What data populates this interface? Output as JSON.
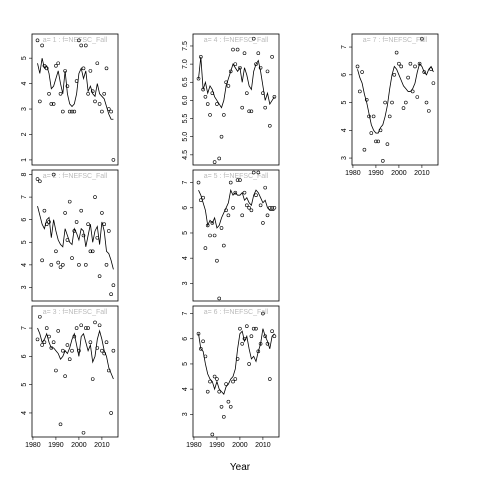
{
  "xlabel": "Year",
  "chart_data": [
    {
      "type": "scatter-line",
      "title": "a= 1 :  f=NEFSC_Fall",
      "color": "#000000",
      "x": [
        1982,
        1983,
        1984,
        1985,
        1986,
        1987,
        1988,
        1989,
        1990,
        1991,
        1992,
        1993,
        1994,
        1995,
        1996,
        1997,
        1998,
        1999,
        2000,
        2001,
        2002,
        2003,
        2004,
        2005,
        2006,
        2007,
        2008,
        2009,
        2010,
        2011,
        2012,
        2013,
        2014,
        2015
      ],
      "points": [
        5.7,
        3.3,
        5.5,
        4.7,
        4.6,
        3.6,
        3.2,
        3.2,
        4.7,
        4.8,
        3.6,
        2.9,
        4.5,
        3.9,
        2.9,
        2.9,
        2.9,
        4.1,
        5.7,
        5.5,
        4.6,
        5.5,
        3.6,
        4.5,
        3.7,
        3.3,
        4.8,
        3.2,
        2.9,
        3.6,
        4.6,
        3.0,
        2.9,
        1.0
      ],
      "fit": [
        4.8,
        4.4,
        5.0,
        4.6,
        4.7,
        4.4,
        3.8,
        3.9,
        4.2,
        4.5,
        4.0,
        3.6,
        4.5,
        3.6,
        3.2,
        3.1,
        3.2,
        3.6,
        4.4,
        4.6,
        4.2,
        4.5,
        3.7,
        3.9,
        3.6,
        3.5,
        4.0,
        3.6,
        3.5,
        3.4,
        3.1,
        2.8,
        2.6,
        2.6
      ],
      "xlim": [
        1979.6,
        2017
      ],
      "ylim": [
        0.8,
        5.95
      ],
      "yticks": [
        1,
        2,
        3,
        4,
        5
      ]
    },
    {
      "type": "scatter-line",
      "title": "a= 2 :  f=NEFSC_Fall",
      "color": "#000000",
      "x": [
        1982,
        1983,
        1984,
        1985,
        1986,
        1987,
        1988,
        1989,
        1990,
        1991,
        1992,
        1993,
        1994,
        1995,
        1996,
        1997,
        1998,
        1999,
        2000,
        2001,
        2002,
        2003,
        2004,
        2005,
        2006,
        2007,
        2008,
        2009,
        2010,
        2011,
        2012,
        2013,
        2014,
        2015
      ],
      "points": [
        7.8,
        7.7,
        4.2,
        6.4,
        5.8,
        5.9,
        4.0,
        8.0,
        4.6,
        4.1,
        3.9,
        4.0,
        6.3,
        5.1,
        6.8,
        4.3,
        5.5,
        5.9,
        4.0,
        6.4,
        5.3,
        4.0,
        5.8,
        4.6,
        4.6,
        7.0,
        5.2,
        3.5,
        6.3,
        5.8,
        4.0,
        5.5,
        2.7,
        3.1
      ],
      "fit": [
        6.6,
        6.2,
        5.8,
        5.6,
        6.0,
        6.1,
        5.2,
        6.0,
        5.5,
        5.1,
        4.9,
        4.8,
        5.6,
        5.3,
        5.0,
        4.9,
        5.6,
        5.4,
        5.1,
        5.6,
        5.5,
        4.8,
        5.3,
        5.8,
        5.0,
        5.5,
        5.7,
        4.9,
        5.9,
        5.5,
        4.6,
        4.5,
        4.2,
        3.8
      ],
      "xlim": [
        1979.6,
        2017
      ],
      "ylim": [
        2.4,
        8.2
      ],
      "yticks": [
        3,
        4,
        5,
        6,
        7,
        8
      ]
    },
    {
      "type": "scatter-line",
      "title": "a= 3 :  f=NEFSC_Fall",
      "color": "#000000",
      "x": [
        1982,
        1983,
        1984,
        1985,
        1986,
        1987,
        1988,
        1989,
        1990,
        1991,
        1992,
        1993,
        1994,
        1995,
        1996,
        1997,
        1998,
        1999,
        2000,
        2001,
        2002,
        2003,
        2004,
        2005,
        2006,
        2007,
        2008,
        2009,
        2010,
        2011,
        2012,
        2013,
        2014,
        2015
      ],
      "points": [
        6.6,
        7.4,
        6.4,
        6.5,
        7.0,
        6.7,
        6.3,
        6.5,
        5.5,
        6.9,
        3.6,
        6.2,
        5.3,
        6.4,
        5.9,
        6.2,
        6.7,
        7.0,
        6.2,
        7.1,
        3.3,
        7.0,
        7.0,
        6.5,
        5.2,
        7.2,
        6.3,
        7.1,
        6.2,
        6.1,
        6.5,
        5.5,
        4.0,
        6.2
      ],
      "fit": [
        7.0,
        6.8,
        6.5,
        6.6,
        6.8,
        6.5,
        6.3,
        6.3,
        6.2,
        6.1,
        5.9,
        6.0,
        6.2,
        6.1,
        6.3,
        6.6,
        6.8,
        6.4,
        6.0,
        6.7,
        6.8,
        6.5,
        6.2,
        6.4,
        5.8,
        6.0,
        6.6,
        6.9,
        6.6,
        6.2,
        6.0,
        5.6,
        5.4,
        5.2
      ],
      "xlim": [
        1979.6,
        2017
      ],
      "ylim": [
        3.15,
        7.78
      ],
      "yticks": [
        4,
        5,
        6,
        7
      ],
      "xticks": [
        1980,
        1990,
        2000,
        2010
      ]
    },
    {
      "type": "scatter-line",
      "title": "a= 4 :  f=NEFSC_Fall",
      "color": "#000000",
      "x": [
        1982,
        1983,
        1984,
        1985,
        1986,
        1987,
        1988,
        1989,
        1990,
        1991,
        1992,
        1993,
        1994,
        1995,
        1996,
        1997,
        1998,
        1999,
        2000,
        2001,
        2002,
        2003,
        2004,
        2005,
        2006,
        2007,
        2008,
        2009,
        2010,
        2011,
        2012,
        2013,
        2014,
        2015
      ],
      "points": [
        6.6,
        7.2,
        6.3,
        6.1,
        5.9,
        5.6,
        6.2,
        4.3,
        5.9,
        4.4,
        5.0,
        5.6,
        6.5,
        6.4,
        6.8,
        7.4,
        7.0,
        7.4,
        6.9,
        5.8,
        7.3,
        6.2,
        5.7,
        5.7,
        7.7,
        7.0,
        7.3,
        6.9,
        6.2,
        5.8,
        6.8,
        5.3,
        7.2,
        6.1
      ],
      "fit": [
        6.6,
        7.2,
        6.3,
        6.5,
        6.2,
        6.4,
        6.3,
        6.1,
        6.0,
        5.9,
        5.8,
        6.0,
        6.4,
        6.6,
        6.8,
        7.0,
        6.9,
        6.8,
        6.9,
        6.5,
        6.9,
        6.7,
        6.4,
        6.3,
        6.8,
        7.0,
        7.1,
        6.8,
        6.4,
        6.0,
        6.2,
        5.9,
        6.0,
        6.1
      ],
      "xlim": [
        1979.6,
        2017
      ],
      "ylim": [
        4.22,
        7.83
      ],
      "yticks": [
        4.5,
        {
          "value": 5,
          "label": "5.0"
        },
        5.5,
        {
          "value": 6,
          "label": "6.0"
        },
        6.5,
        {
          "value": 7,
          "label": "7.0"
        },
        7.5
      ]
    },
    {
      "type": "scatter-line",
      "title": "a= 5 :  f=NEFSC_Fall",
      "color": "#000000",
      "x": [
        1982,
        1983,
        1984,
        1985,
        1986,
        1987,
        1988,
        1989,
        1990,
        1991,
        1992,
        1993,
        1994,
        1995,
        1996,
        1997,
        1998,
        1999,
        2000,
        2001,
        2002,
        2003,
        2004,
        2005,
        2006,
        2007,
        2008,
        2009,
        2010,
        2011,
        2012,
        2013,
        2014,
        2015
      ],
      "points": [
        7.0,
        6.3,
        6.4,
        4.4,
        5.3,
        4.9,
        5.4,
        4.9,
        3.9,
        2.4,
        5.2,
        4.5,
        5.9,
        5.7,
        7.0,
        6.0,
        6.6,
        7.1,
        7.1,
        5.7,
        6.6,
        6.1,
        6.0,
        5.9,
        7.4,
        6.5,
        7.4,
        6.1,
        5.4,
        6.8,
        5.7,
        6.0,
        6.0,
        6.0
      ],
      "fit": [
        6.7,
        6.5,
        6.2,
        5.9,
        5.3,
        5.5,
        5.4,
        5.6,
        5.2,
        5.3,
        5.6,
        5.8,
        6.0,
        6.2,
        6.7,
        6.5,
        6.6,
        6.5,
        6.5,
        6.6,
        6.3,
        6.4,
        6.2,
        6.1,
        6.5,
        6.7,
        6.6,
        6.4,
        6.2,
        6.3,
        6.0,
        5.9,
        5.9,
        5.9
      ],
      "xlim": [
        1979.6,
        2017
      ],
      "ylim": [
        2.3,
        7.5
      ],
      "yticks": [
        3,
        4,
        5,
        6,
        7
      ]
    },
    {
      "type": "scatter-line",
      "title": "a= 6 :  f=NEFSC_Fall",
      "color": "#000000",
      "x": [
        1982,
        1983,
        1984,
        1985,
        1986,
        1987,
        1988,
        1989,
        1990,
        1991,
        1992,
        1993,
        1994,
        1995,
        1996,
        1997,
        1998,
        1999,
        2000,
        2001,
        2002,
        2003,
        2004,
        2005,
        2006,
        2007,
        2008,
        2009,
        2010,
        2011,
        2012,
        2013,
        2014,
        2015
      ],
      "points": [
        6.2,
        5.6,
        5.9,
        5.3,
        3.9,
        4.3,
        2.2,
        4.5,
        4.4,
        3.9,
        3.3,
        2.9,
        4.2,
        3.5,
        3.3,
        4.3,
        4.4,
        5.2,
        6.4,
        5.8,
        6.0,
        6.5,
        5.0,
        6.1,
        6.4,
        6.4,
        5.5,
        5.8,
        7.0,
        6.1,
        5.8,
        4.4,
        6.3,
        6.1
      ],
      "fit": [
        6.2,
        5.6,
        5.5,
        5.0,
        4.6,
        4.4,
        4.3,
        4.0,
        4.3,
        4.0,
        3.9,
        3.8,
        4.1,
        4.2,
        4.4,
        4.5,
        4.8,
        5.6,
        6.2,
        6.3,
        5.9,
        6.1,
        5.6,
        5.2,
        5.3,
        5.1,
        5.5,
        5.8,
        6.4,
        6.1,
        5.9,
        5.6,
        6.1,
        6.2
      ],
      "xlim": [
        1979.6,
        2017
      ],
      "ylim": [
        2.1,
        7.3
      ],
      "yticks": [
        3,
        4,
        5,
        6,
        7
      ],
      "xticks": [
        1980,
        1990,
        2000,
        2010
      ]
    },
    {
      "type": "scatter-line",
      "title": "a= 7 :  f=NEFSC_Fall",
      "color": "#000000",
      "x": [
        1982,
        1983,
        1984,
        1985,
        1986,
        1987,
        1988,
        1989,
        1990,
        1991,
        1992,
        1993,
        1994,
        1995,
        1996,
        1997,
        1998,
        1999,
        2000,
        2001,
        2002,
        2003,
        2004,
        2005,
        2006,
        2007,
        2008,
        2009,
        2010,
        2011,
        2012,
        2013,
        2014,
        2015
      ],
      "points": [
        6.3,
        5.4,
        6.1,
        3.3,
        5.1,
        4.5,
        3.9,
        4.5,
        3.6,
        3.6,
        4.0,
        2.9,
        5.0,
        3.5,
        4.5,
        5.0,
        6.0,
        6.8,
        6.4,
        6.3,
        4.8,
        5.0,
        5.9,
        6.4,
        5.4,
        6.3,
        5.2,
        6.4,
        7.3,
        6.1,
        5.0,
        4.7,
        6.2,
        5.7
      ],
      "fit": [
        6.2,
        5.9,
        5.7,
        5.3,
        5.0,
        4.6,
        4.2,
        4.0,
        3.9,
        3.9,
        4.1,
        4.2,
        4.5,
        4.9,
        5.5,
        6.0,
        6.3,
        6.2,
        6.0,
        5.8,
        5.6,
        5.5,
        5.4,
        5.4,
        5.5,
        5.7,
        6.1,
        6.4,
        6.3,
        6.1,
        6.0,
        6.2,
        6.3,
        6.1
      ],
      "xlim": [
        1979.6,
        2017
      ],
      "ylim": [
        2.75,
        7.47
      ],
      "yticks": [
        3,
        4,
        5,
        6,
        7
      ],
      "xticks": [
        1980,
        1990,
        2000,
        2010
      ]
    }
  ]
}
